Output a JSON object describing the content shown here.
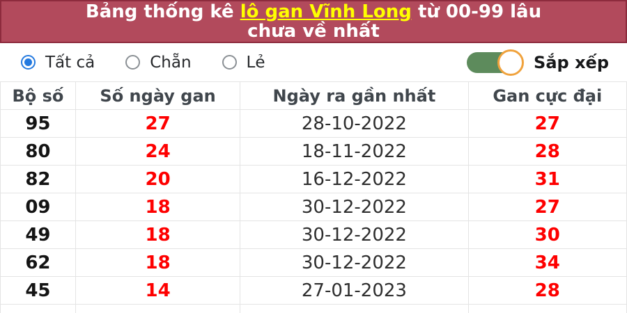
{
  "banner": {
    "prefix": "Bảng thống kê ",
    "link": "lô gan Vĩnh Long",
    "suffix_line1": " từ 00-99 lâu",
    "line2": "chưa về nhất",
    "bg_color": "#b24a5c",
    "border_color": "#8d2b3d",
    "link_color": "#ffff00"
  },
  "filters": {
    "options": [
      {
        "label": "Tất cả",
        "selected": true
      },
      {
        "label": "Chẵn",
        "selected": false
      },
      {
        "label": "Lẻ",
        "selected": false
      }
    ],
    "selected_color": "#2379df",
    "sort_label": "Sắp xếp",
    "sort_on": true,
    "toggle_track_color": "#5d8b5c",
    "toggle_knob_ring_color": "#f0a23c"
  },
  "table": {
    "headers": [
      "Bộ số",
      "Số ngày gan",
      "Ngày ra gần nhất",
      "Gan cực đại"
    ],
    "rows": [
      [
        "95",
        "27",
        "28-10-2022",
        "27"
      ],
      [
        "80",
        "24",
        "18-11-2022",
        "28"
      ],
      [
        "82",
        "20",
        "16-12-2022",
        "31"
      ],
      [
        "09",
        "18",
        "30-12-2022",
        "27"
      ],
      [
        "49",
        "18",
        "30-12-2022",
        "30"
      ],
      [
        "62",
        "18",
        "30-12-2022",
        "34"
      ],
      [
        "45",
        "14",
        "27-01-2023",
        "28"
      ]
    ],
    "highlight_color": "#fe0000"
  }
}
